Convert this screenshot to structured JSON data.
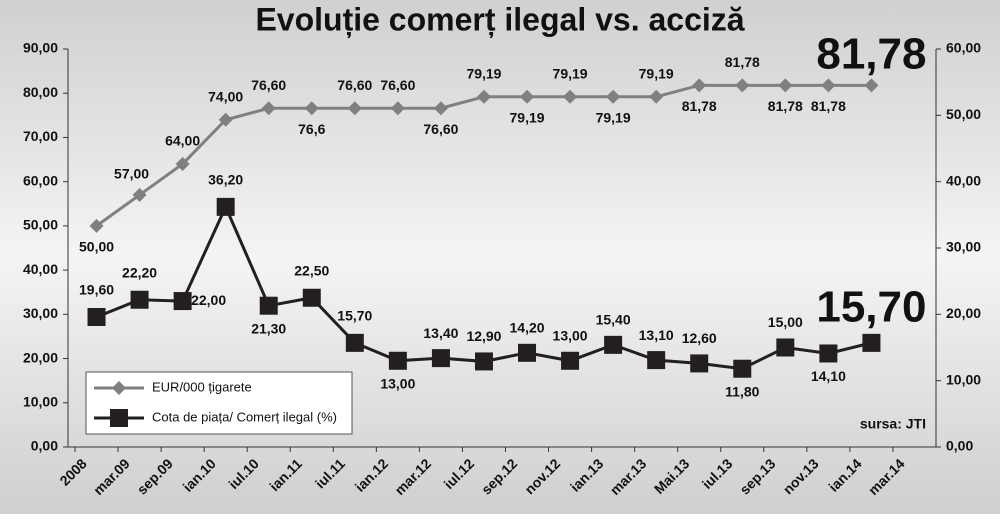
{
  "chart_data": {
    "type": "line",
    "title": "Evoluție comerț ilegal vs. acciză",
    "annotation": "sursa: JTI",
    "categories": [
      "2008",
      "mar.09",
      "sep.09",
      "ian.10",
      "iul.10",
      "ian.11",
      "iul.11",
      "ian.12",
      "mar.12",
      "iul.12",
      "sep.12",
      "nov.12",
      "ian.13",
      "mar.13",
      "Mai.13",
      "iul.13",
      "sep.13",
      "nov.13",
      "ian.14",
      "mar.14"
    ],
    "series": [
      {
        "name": "EUR/000 țigarete",
        "color": "#808080",
        "marker": "diamond",
        "values": [
          50,
          57,
          64,
          74,
          76.6,
          76.6,
          76.6,
          76.6,
          76.6,
          79.19,
          79.19,
          79.19,
          79.19,
          79.19,
          81.78,
          81.78,
          81.78,
          81.78,
          81.78,
          null
        ],
        "value_labels": [
          "50,00",
          "57,00",
          "64,00",
          "74,00",
          "76,60",
          "76,6",
          "76,60",
          "76,60",
          "76,60",
          "79,19",
          "79,19",
          "79,19",
          "79,19",
          "79,19",
          "81,78",
          "81,78",
          "81,78",
          "81,78",
          "81,78",
          null
        ]
      },
      {
        "name": "Cota de piața/ Comerț ilegal (%)",
        "color": "#231f20",
        "marker": "square",
        "axis": "y2",
        "values": [
          19.6,
          22.2,
          22,
          36.2,
          21.3,
          22.5,
          15.7,
          13,
          13.4,
          12.9,
          14.2,
          13,
          15.4,
          13.1,
          12.6,
          11.8,
          15,
          14.1,
          15.7,
          null
        ],
        "value_labels": [
          "19,60",
          "22,20",
          "22,00",
          "36,20",
          "21,30",
          "22,50",
          "15,70",
          "13,00",
          "13,40",
          "12,90",
          "14,20",
          "13,00",
          "15,40",
          "13,10",
          "12,60",
          "11,80",
          "15,00",
          "14,10",
          "15,70",
          null
        ]
      }
    ],
    "ylim": [
      0,
      90
    ],
    "yticks": [
      {
        "value": 0,
        "label": "0,00"
      },
      {
        "value": 10,
        "label": "10,00"
      },
      {
        "value": 20,
        "label": "20,00"
      },
      {
        "value": 30,
        "label": "30,00"
      },
      {
        "value": 40,
        "label": "40,00"
      },
      {
        "value": 50,
        "label": "50,00"
      },
      {
        "value": 60,
        "label": "60,00"
      },
      {
        "value": 70,
        "label": "70,00"
      },
      {
        "value": 80,
        "label": "80,00"
      },
      {
        "value": 90,
        "label": "90,00"
      }
    ],
    "y2lim": [
      0,
      60
    ],
    "y2ticks": [
      {
        "value": 0,
        "label": "0,00"
      },
      {
        "value": 10,
        "label": "10,00"
      },
      {
        "value": 20,
        "label": "20,00"
      },
      {
        "value": 30,
        "label": "30,00"
      },
      {
        "value": 40,
        "label": "40,00"
      },
      {
        "value": 50,
        "label": "50,00"
      },
      {
        "value": 60,
        "label": "60,00"
      }
    ],
    "grid": false,
    "legend": "bottom-left"
  }
}
